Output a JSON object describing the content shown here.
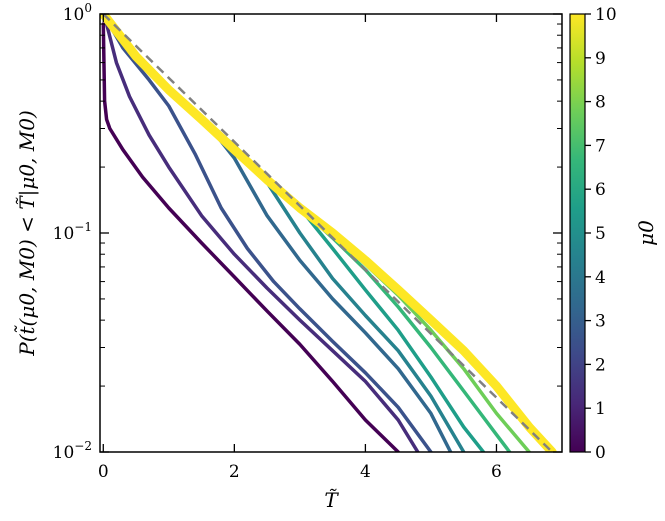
{
  "chart_data": {
    "type": "line",
    "xlabel": "T̃",
    "ylabel": "P(t̃(μ0, M0) < T̃|μ0, M0)",
    "xlim": [
      -0.05,
      7.0
    ],
    "ylim": [
      0.01,
      1.0
    ],
    "yscale": "log",
    "x_ticks": [
      {
        "value": 0,
        "label": "0"
      },
      {
        "value": 2,
        "label": "2"
      },
      {
        "value": 4,
        "label": "4"
      },
      {
        "value": 6,
        "label": "6"
      }
    ],
    "y_ticks": [
      {
        "value": 1.0,
        "base": "10",
        "exp": "0"
      },
      {
        "value": 0.1,
        "base": "10",
        "exp": "−1"
      },
      {
        "value": 0.01,
        "base": "10",
        "exp": "−2"
      }
    ],
    "colorbar": {
      "label": "μ0",
      "min": 0,
      "max": 10,
      "ticks": [
        "0",
        "1",
        "2",
        "3",
        "4",
        "5",
        "6",
        "7",
        "8",
        "9",
        "10"
      ],
      "colormap": [
        "#440154",
        "#482878",
        "#3e4989",
        "#31688e",
        "#26828e",
        "#1f9e89",
        "#35b779",
        "#6ece58",
        "#b5de2b",
        "#fde725"
      ]
    },
    "reference_line": {
      "style": "dashed",
      "color": "#808080",
      "x": [
        0,
        6.85
      ],
      "y": [
        1.0,
        0.01
      ]
    },
    "series": [
      {
        "mu0": 0.2,
        "color": "#440154",
        "x": [
          0,
          0.02,
          0.05,
          0.1,
          0.3,
          0.6,
          1.0,
          1.5,
          2.0,
          2.5,
          3.0,
          3.5,
          4.0,
          4.5
        ],
        "y": [
          0.9,
          0.4,
          0.33,
          0.3,
          0.24,
          0.18,
          0.13,
          0.09,
          0.063,
          0.044,
          0.031,
          0.021,
          0.014,
          0.01
        ]
      },
      {
        "mu0": 1.0,
        "color": "#472d7b",
        "x": [
          0,
          0.05,
          0.2,
          0.4,
          0.7,
          1.0,
          1.5,
          2.0,
          2.5,
          3.0,
          3.5,
          4.0,
          4.5,
          4.8
        ],
        "y": [
          1.0,
          0.9,
          0.6,
          0.42,
          0.28,
          0.2,
          0.12,
          0.08,
          0.056,
          0.04,
          0.029,
          0.021,
          0.014,
          0.01
        ]
      },
      {
        "mu0": 2.0,
        "color": "#3b528b",
        "x": [
          0,
          0.3,
          0.7,
          1.0,
          1.4,
          1.8,
          2.2,
          2.6,
          3.0,
          3.5,
          4.0,
          4.5,
          5.0
        ],
        "y": [
          1.0,
          0.7,
          0.5,
          0.38,
          0.23,
          0.13,
          0.085,
          0.06,
          0.045,
          0.032,
          0.023,
          0.016,
          0.01
        ]
      },
      {
        "mu0": 3.0,
        "color": "#31688e",
        "x": [
          0,
          0.5,
          1.0,
          1.5,
          2.0,
          2.5,
          3.0,
          3.5,
          4.0,
          4.5,
          5.0,
          5.3
        ],
        "y": [
          1.0,
          0.65,
          0.46,
          0.34,
          0.22,
          0.12,
          0.075,
          0.05,
          0.035,
          0.024,
          0.015,
          0.01
        ]
      },
      {
        "mu0": 4.0,
        "color": "#26828e",
        "x": [
          0,
          0.5,
          1.0,
          1.5,
          2.0,
          2.5,
          3.0,
          3.5,
          4.0,
          4.5,
          5.0,
          5.5
        ],
        "y": [
          1.0,
          0.65,
          0.46,
          0.34,
          0.25,
          0.17,
          0.1,
          0.062,
          0.042,
          0.029,
          0.018,
          0.01
        ]
      },
      {
        "mu0": 5.0,
        "color": "#1f9e89",
        "x": [
          0,
          0.5,
          1.0,
          1.5,
          2.0,
          2.5,
          3.0,
          3.5,
          4.0,
          4.5,
          5.0,
          5.5,
          5.8
        ],
        "y": [
          1.0,
          0.65,
          0.46,
          0.34,
          0.25,
          0.18,
          0.13,
          0.085,
          0.055,
          0.036,
          0.022,
          0.013,
          0.01
        ]
      },
      {
        "mu0": 6.5,
        "color": "#35b779",
        "x": [
          0,
          0.5,
          1.0,
          1.5,
          2.0,
          2.5,
          3.0,
          3.5,
          4.0,
          4.5,
          5.0,
          5.5,
          6.0,
          6.2
        ],
        "y": [
          1.0,
          0.65,
          0.46,
          0.34,
          0.25,
          0.18,
          0.13,
          0.095,
          0.068,
          0.046,
          0.03,
          0.019,
          0.012,
          0.01
        ]
      },
      {
        "mu0": 8.0,
        "color": "#6ece58",
        "x": [
          0,
          0.5,
          1.0,
          1.5,
          2.0,
          2.5,
          3.0,
          3.5,
          4.0,
          4.5,
          5.0,
          5.5,
          6.0,
          6.5
        ],
        "y": [
          1.0,
          0.65,
          0.46,
          0.34,
          0.25,
          0.18,
          0.13,
          0.1,
          0.072,
          0.052,
          0.036,
          0.024,
          0.015,
          0.01
        ]
      },
      {
        "mu0": 10.0,
        "color": "#fde725",
        "x": [
          0,
          0.5,
          1.0,
          1.5,
          2.0,
          2.5,
          3.0,
          3.5,
          4.0,
          4.5,
          5.0,
          5.5,
          6.0,
          6.5,
          6.85
        ],
        "y": [
          1.0,
          0.64,
          0.45,
          0.33,
          0.24,
          0.175,
          0.13,
          0.1,
          0.075,
          0.055,
          0.04,
          0.029,
          0.02,
          0.013,
          0.01
        ]
      }
    ]
  }
}
